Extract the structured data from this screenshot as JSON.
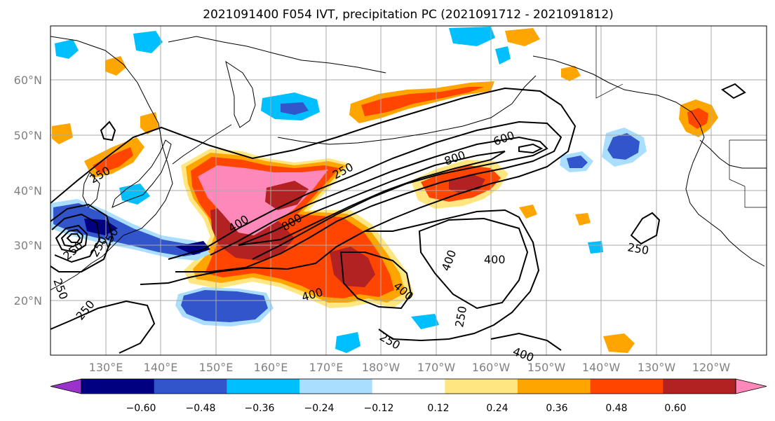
{
  "title": "2021091400 F054 IVT, precipitation PC (2021091712 - 2021091812)",
  "map": {
    "lat_labels": [
      "60°N",
      "50°N",
      "40°N",
      "30°N",
      "20°N"
    ],
    "lon_labels": [
      "130°E",
      "140°E",
      "150°E",
      "160°E",
      "170°E",
      "180°W",
      "170°W",
      "160°W",
      "150°W",
      "140°W",
      "130°W",
      "120°W"
    ],
    "contour_labels": [
      "600",
      "800",
      "250",
      "400",
      "800",
      "250",
      "400",
      "400",
      "400",
      "250",
      "250",
      "400",
      "250",
      "250",
      "250",
      "400",
      "250",
      "250",
      "250"
    ]
  },
  "colorbar": {
    "colors": [
      "#9933cc",
      "#000080",
      "#3355cc",
      "#00bfff",
      "#aadeff",
      "#ffffff",
      "#ffe680",
      "#ffa500",
      "#ff4500",
      "#b22222",
      "#ff88bb"
    ],
    "tick_labels": [
      "−0.60",
      "−0.48",
      "−0.36",
      "−0.24",
      "−0.12",
      "0.12",
      "0.24",
      "0.36",
      "0.48",
      "0.60"
    ]
  },
  "fill_colors": {
    "pink": "#ff88bb",
    "darkred": "#b22222",
    "red": "#ff4500",
    "orange": "#ffa500",
    "yellow": "#ffe680",
    "lightblue": "#aadeff",
    "skyblue": "#00bfff",
    "blue": "#3355cc",
    "navy": "#000080"
  }
}
